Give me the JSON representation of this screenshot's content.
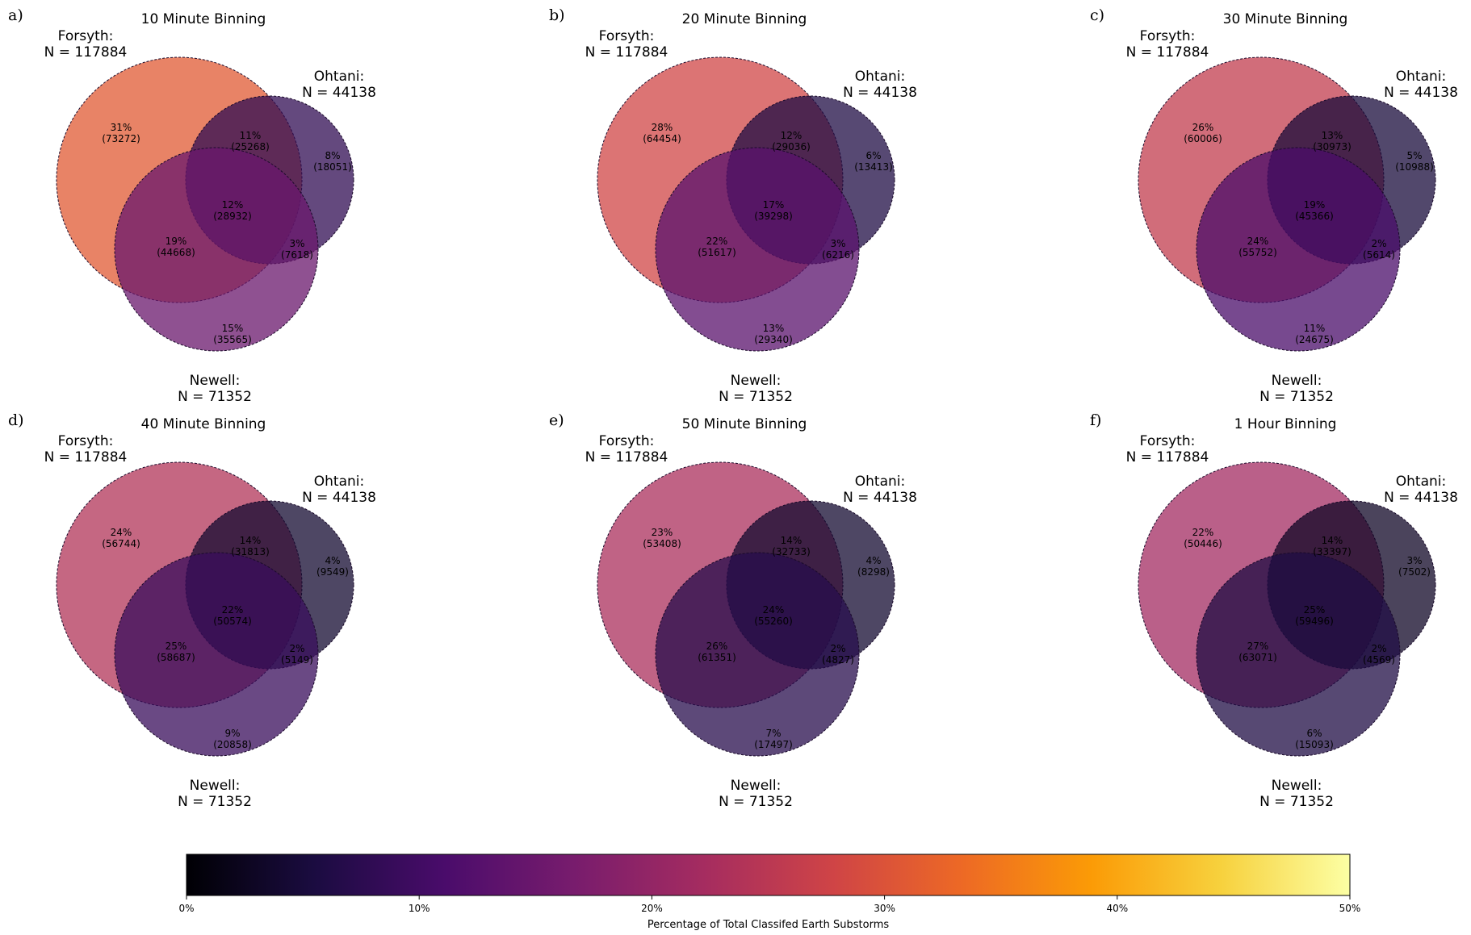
{
  "figure": {
    "colormap_stops": [
      "#000004",
      "#1b0c41",
      "#4a0c6b",
      "#781c6d",
      "#a52c60",
      "#cf4446",
      "#ed6925",
      "#fb9b06",
      "#f7d13d",
      "#fcffa4"
    ],
    "circle_edge_color": "#1a0a2a"
  },
  "chart_data": [
    {
      "type": "venn3",
      "letter": "a)",
      "title": "10 Minute Binning",
      "sets": [
        {
          "name": "Forsyth:",
          "n_text": "N = 117884",
          "n": 117884
        },
        {
          "name": "Ohtani:",
          "n_text": "N = 44138",
          "n": 44138
        },
        {
          "name": "Newell:",
          "n_text": "N = 71352",
          "n": 71352
        }
      ],
      "regions": [
        {
          "key": "forsyth_only",
          "pct": 31,
          "count": 73272,
          "pct_text": "31%",
          "count_text": "(73272)"
        },
        {
          "key": "forsyth_ohtani",
          "pct": 11,
          "count": 25268,
          "pct_text": "11%",
          "count_text": "(25268)"
        },
        {
          "key": "ohtani_only",
          "pct": 8,
          "count": 18051,
          "pct_text": "8%",
          "count_text": "(18051)"
        },
        {
          "key": "all_three",
          "pct": 12,
          "count": 28932,
          "pct_text": "12%",
          "count_text": "(28932)"
        },
        {
          "key": "forsyth_newell",
          "pct": 19,
          "count": 44668,
          "pct_text": "19%",
          "count_text": "(44668)"
        },
        {
          "key": "ohtani_newell",
          "pct": 3,
          "count": 7618,
          "pct_text": "3%",
          "count_text": "(7618)"
        },
        {
          "key": "newell_only",
          "pct": 15,
          "count": 35565,
          "pct_text": "15%",
          "count_text": "(35565)"
        }
      ]
    },
    {
      "type": "venn3",
      "letter": "b)",
      "title": "20 Minute Binning",
      "sets": [
        {
          "name": "Forsyth:",
          "n_text": "N = 117884",
          "n": 117884
        },
        {
          "name": "Ohtani:",
          "n_text": "N = 44138",
          "n": 44138
        },
        {
          "name": "Newell:",
          "n_text": "N = 71352",
          "n": 71352
        }
      ],
      "regions": [
        {
          "key": "forsyth_only",
          "pct": 28,
          "count": 64454,
          "pct_text": "28%",
          "count_text": "(64454)"
        },
        {
          "key": "forsyth_ohtani",
          "pct": 12,
          "count": 29036,
          "pct_text": "12%",
          "count_text": "(29036)"
        },
        {
          "key": "ohtani_only",
          "pct": 6,
          "count": 13413,
          "pct_text": "6%",
          "count_text": "(13413)"
        },
        {
          "key": "all_three",
          "pct": 17,
          "count": 39298,
          "pct_text": "17%",
          "count_text": "(39298)"
        },
        {
          "key": "forsyth_newell",
          "pct": 22,
          "count": 51617,
          "pct_text": "22%",
          "count_text": "(51617)"
        },
        {
          "key": "ohtani_newell",
          "pct": 3,
          "count": 6216,
          "pct_text": "3%",
          "count_text": "(6216)"
        },
        {
          "key": "newell_only",
          "pct": 13,
          "count": 29340,
          "pct_text": "13%",
          "count_text": "(29340)"
        }
      ]
    },
    {
      "type": "venn3",
      "letter": "c)",
      "title": "30 Minute Binning",
      "sets": [
        {
          "name": "Forsyth:",
          "n_text": "N = 117884",
          "n": 117884
        },
        {
          "name": "Ohtani:",
          "n_text": "N = 44138",
          "n": 44138
        },
        {
          "name": "Newell:",
          "n_text": "N = 71352",
          "n": 71352
        }
      ],
      "regions": [
        {
          "key": "forsyth_only",
          "pct": 26,
          "count": 60006,
          "pct_text": "26%",
          "count_text": "(60006)"
        },
        {
          "key": "forsyth_ohtani",
          "pct": 13,
          "count": 30973,
          "pct_text": "13%",
          "count_text": "(30973)"
        },
        {
          "key": "ohtani_only",
          "pct": 5,
          "count": 10988,
          "pct_text": "5%",
          "count_text": "(10988)"
        },
        {
          "key": "all_three",
          "pct": 19,
          "count": 45366,
          "pct_text": "19%",
          "count_text": "(45366)"
        },
        {
          "key": "forsyth_newell",
          "pct": 24,
          "count": 55752,
          "pct_text": "24%",
          "count_text": "(55752)"
        },
        {
          "key": "ohtani_newell",
          "pct": 2,
          "count": 5614,
          "pct_text": "2%",
          "count_text": "(5614)"
        },
        {
          "key": "newell_only",
          "pct": 11,
          "count": 24675,
          "pct_text": "11%",
          "count_text": "(24675)"
        }
      ]
    },
    {
      "type": "venn3",
      "letter": "d)",
      "title": "40 Minute Binning",
      "sets": [
        {
          "name": "Forsyth:",
          "n_text": "N = 117884",
          "n": 117884
        },
        {
          "name": "Ohtani:",
          "n_text": "N = 44138",
          "n": 44138
        },
        {
          "name": "Newell:",
          "n_text": "N = 71352",
          "n": 71352
        }
      ],
      "regions": [
        {
          "key": "forsyth_only",
          "pct": 24,
          "count": 56744,
          "pct_text": "24%",
          "count_text": "(56744)"
        },
        {
          "key": "forsyth_ohtani",
          "pct": 14,
          "count": 31813,
          "pct_text": "14%",
          "count_text": "(31813)"
        },
        {
          "key": "ohtani_only",
          "pct": 4,
          "count": 9549,
          "pct_text": "4%",
          "count_text": "(9549)"
        },
        {
          "key": "all_three",
          "pct": 22,
          "count": 50574,
          "pct_text": "22%",
          "count_text": "(50574)"
        },
        {
          "key": "forsyth_newell",
          "pct": 25,
          "count": 58687,
          "pct_text": "25%",
          "count_text": "(58687)"
        },
        {
          "key": "ohtani_newell",
          "pct": 2,
          "count": 5149,
          "pct_text": "2%",
          "count_text": "(5149)"
        },
        {
          "key": "newell_only",
          "pct": 9,
          "count": 20858,
          "pct_text": "9%",
          "count_text": "(20858)"
        }
      ]
    },
    {
      "type": "venn3",
      "letter": "e)",
      "title": "50 Minute Binning",
      "sets": [
        {
          "name": "Forsyth:",
          "n_text": "N = 117884",
          "n": 117884
        },
        {
          "name": "Ohtani:",
          "n_text": "N = 44138",
          "n": 44138
        },
        {
          "name": "Newell:",
          "n_text": "N = 71352",
          "n": 71352
        }
      ],
      "regions": [
        {
          "key": "forsyth_only",
          "pct": 23,
          "count": 53408,
          "pct_text": "23%",
          "count_text": "(53408)"
        },
        {
          "key": "forsyth_ohtani",
          "pct": 14,
          "count": 32733,
          "pct_text": "14%",
          "count_text": "(32733)"
        },
        {
          "key": "ohtani_only",
          "pct": 4,
          "count": 8298,
          "pct_text": "4%",
          "count_text": "(8298)"
        },
        {
          "key": "all_three",
          "pct": 24,
          "count": 55260,
          "pct_text": "24%",
          "count_text": "(55260)"
        },
        {
          "key": "forsyth_newell",
          "pct": 26,
          "count": 61351,
          "pct_text": "26%",
          "count_text": "(61351)"
        },
        {
          "key": "ohtani_newell",
          "pct": 2,
          "count": 4827,
          "pct_text": "2%",
          "count_text": "(4827)"
        },
        {
          "key": "newell_only",
          "pct": 7,
          "count": 17497,
          "pct_text": "7%",
          "count_text": "(17497)"
        }
      ]
    },
    {
      "type": "venn3",
      "letter": "f)",
      "title": "1 Hour Binning",
      "sets": [
        {
          "name": "Forsyth:",
          "n_text": "N = 117884",
          "n": 117884
        },
        {
          "name": "Ohtani:",
          "n_text": "N = 44138",
          "n": 44138
        },
        {
          "name": "Newell:",
          "n_text": "N = 71352",
          "n": 71352
        }
      ],
      "regions": [
        {
          "key": "forsyth_only",
          "pct": 22,
          "count": 50446,
          "pct_text": "22%",
          "count_text": "(50446)"
        },
        {
          "key": "forsyth_ohtani",
          "pct": 14,
          "count": 33397,
          "pct_text": "14%",
          "count_text": "(33397)"
        },
        {
          "key": "ohtani_only",
          "pct": 3,
          "count": 7502,
          "pct_text": "3%",
          "count_text": "(7502)"
        },
        {
          "key": "all_three",
          "pct": 25,
          "count": 59496,
          "pct_text": "25%",
          "count_text": "(59496)"
        },
        {
          "key": "forsyth_newell",
          "pct": 27,
          "count": 63071,
          "pct_text": "27%",
          "count_text": "(63071)"
        },
        {
          "key": "ohtani_newell",
          "pct": 2,
          "count": 4569,
          "pct_text": "2%",
          "count_text": "(4569)"
        },
        {
          "key": "newell_only",
          "pct": 6,
          "count": 15093,
          "pct_text": "6%",
          "count_text": "(15093)"
        }
      ]
    },
    {
      "type": "colorbar",
      "orientation": "horizontal",
      "range": [
        0,
        50
      ],
      "ticks": [
        0,
        10,
        20,
        30,
        40,
        50
      ],
      "tick_labels": [
        "0%",
        "10%",
        "20%",
        "30%",
        "40%",
        "50%"
      ],
      "xlabel": "Percentage of Total Classifed Earth Substorms"
    }
  ]
}
